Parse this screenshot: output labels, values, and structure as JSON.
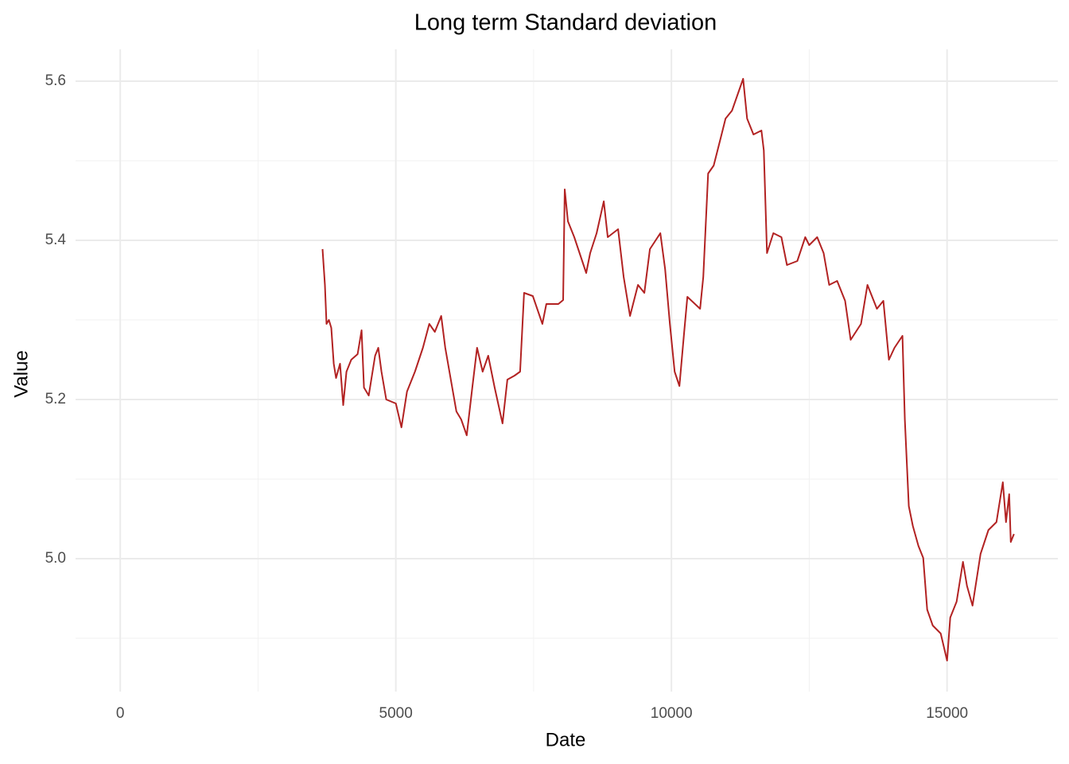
{
  "chart_data": {
    "type": "line",
    "title": "Long term Standard deviation",
    "x_label": "Date",
    "y_label": "Value",
    "x": [
      3670,
      3714,
      3743,
      3786,
      3829,
      3873,
      3916,
      3988,
      4046,
      4104,
      4191,
      4306,
      4379,
      4422,
      4508,
      4624,
      4682,
      4739,
      4826,
      5000,
      5101,
      5202,
      5347,
      5491,
      5607,
      5708,
      5823,
      5896,
      5997,
      6098,
      6185,
      6286,
      6387,
      6474,
      6575,
      6676,
      6792,
      6936,
      7023,
      7153,
      7254,
      7326,
      7485,
      7659,
      7731,
      7948,
      8035,
      8064,
      8121,
      8237,
      8382,
      8454,
      8526,
      8642,
      8772,
      8844,
      9032,
      9133,
      9249,
      9393,
      9509,
      9610,
      9798,
      9885,
      9971,
      10058,
      10145,
      10231,
      10289,
      10520,
      10578,
      10665,
      10766,
      10910,
      10982,
      11098,
      11199,
      11300,
      11372,
      11488,
      11632,
      11676,
      11733,
      11849,
      11994,
      12095,
      12283,
      12427,
      12500,
      12644,
      12760,
      12861,
      13006,
      13150,
      13251,
      13439,
      13555,
      13728,
      13844,
      13945,
      14046,
      14191,
      14234,
      14306,
      14379,
      14480,
      14567,
      14639,
      14740,
      14885,
      15000,
      15058,
      15173,
      15289,
      15361,
      15462,
      15607,
      15751,
      15896,
      16012,
      16069,
      16127,
      16156,
      16213
    ],
    "series": [
      {
        "name": "Value",
        "color": "#b22222",
        "values": [
          5.389,
          5.344,
          5.295,
          5.3,
          5.29,
          5.245,
          5.227,
          5.245,
          5.193,
          5.235,
          5.25,
          5.257,
          5.287,
          5.215,
          5.205,
          5.255,
          5.265,
          5.235,
          5.2,
          5.195,
          5.165,
          5.21,
          5.235,
          5.265,
          5.295,
          5.285,
          5.305,
          5.265,
          5.225,
          5.185,
          5.175,
          5.155,
          5.215,
          5.265,
          5.235,
          5.255,
          5.215,
          5.17,
          5.225,
          5.23,
          5.235,
          5.334,
          5.33,
          5.295,
          5.32,
          5.32,
          5.325,
          5.464,
          5.424,
          5.404,
          5.374,
          5.359,
          5.384,
          5.409,
          5.449,
          5.404,
          5.414,
          5.354,
          5.305,
          5.344,
          5.334,
          5.389,
          5.409,
          5.364,
          5.295,
          5.235,
          5.217,
          5.285,
          5.329,
          5.314,
          5.354,
          5.484,
          5.494,
          5.533,
          5.553,
          5.563,
          5.583,
          5.603,
          5.553,
          5.533,
          5.538,
          5.513,
          5.384,
          5.409,
          5.404,
          5.369,
          5.374,
          5.404,
          5.394,
          5.404,
          5.384,
          5.344,
          5.349,
          5.324,
          5.275,
          5.295,
          5.344,
          5.314,
          5.324,
          5.25,
          5.265,
          5.28,
          5.175,
          5.066,
          5.041,
          5.016,
          5.001,
          4.936,
          4.916,
          4.906,
          4.872,
          4.926,
          4.946,
          4.996,
          4.966,
          4.941,
          5.006,
          5.036,
          5.046,
          5.096,
          5.046,
          5.081,
          5.021,
          5.031
        ]
      }
    ],
    "xlim": [
      -810,
      17010
    ],
    "ylim": [
      4.833,
      5.64
    ],
    "xticks": [
      0,
      5000,
      10000,
      15000
    ],
    "yticks": [
      {
        "value": 5,
        "label": "5.0"
      },
      5.2,
      5.4,
      5.6
    ],
    "x_minor_ticks": [
      2500,
      7500,
      12500
    ],
    "y_minor_ticks": [
      4.9,
      5.1,
      5.3,
      5.5
    ],
    "grid": true
  }
}
